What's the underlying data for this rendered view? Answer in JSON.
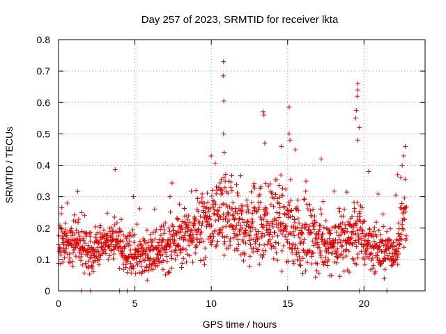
{
  "chart_data": {
    "type": "scatter",
    "title": "Day 257 of 2023, SRMTID for receiver lkta",
    "xlabel": "GPS time / hours",
    "ylabel": "SRMTID / TECUs",
    "xlim": [
      0,
      24
    ],
    "ylim": [
      0,
      0.8
    ],
    "x_ticks": [
      0,
      5,
      10,
      15,
      20
    ],
    "x_tick_labels": [
      "0",
      "5",
      "10",
      "15",
      "20"
    ],
    "y_ticks": [
      0,
      0.1,
      0.2,
      0.3,
      0.4,
      0.5,
      0.6,
      0.7,
      0.8
    ],
    "y_tick_labels": [
      "0",
      "0.1",
      "0.2",
      "0.3",
      "0.4",
      "0.5",
      "0.6",
      "0.7",
      "0.8"
    ],
    "grid": true,
    "marker": "plus",
    "colors": {
      "points": "#e00000",
      "grid": "#a0a0a0",
      "axis": "#000000"
    },
    "zero_value_times": [
      1.5,
      2.1,
      4.0,
      4.5,
      19.7,
      21.5
    ],
    "envelope": {
      "hours": [
        0,
        1,
        1.5,
        2,
        3,
        4,
        5,
        6,
        7,
        8,
        9,
        10,
        10.5,
        11,
        12,
        13,
        14,
        15,
        16,
        17,
        18,
        19,
        19.5,
        20,
        21,
        22,
        22.8
      ],
      "center": [
        0.17,
        0.15,
        0.16,
        0.11,
        0.16,
        0.15,
        0.11,
        0.12,
        0.14,
        0.17,
        0.19,
        0.22,
        0.24,
        0.22,
        0.2,
        0.21,
        0.22,
        0.2,
        0.17,
        0.15,
        0.15,
        0.17,
        0.2,
        0.16,
        0.13,
        0.12,
        0.26
      ],
      "spread": [
        0.06,
        0.05,
        0.06,
        0.05,
        0.05,
        0.05,
        0.05,
        0.05,
        0.06,
        0.07,
        0.07,
        0.08,
        0.09,
        0.09,
        0.08,
        0.1,
        0.1,
        0.09,
        0.08,
        0.07,
        0.06,
        0.08,
        0.1,
        0.07,
        0.05,
        0.05,
        0.07
      ]
    },
    "peaks": [
      {
        "x": 10.8,
        "y": 0.73
      },
      {
        "x": 10.78,
        "y": 0.685
      },
      {
        "x": 10.82,
        "y": 0.605
      },
      {
        "x": 10.8,
        "y": 0.5
      },
      {
        "x": 10.85,
        "y": 0.44
      },
      {
        "x": 10.0,
        "y": 0.43
      },
      {
        "x": 13.4,
        "y": 0.57
      },
      {
        "x": 13.45,
        "y": 0.56
      },
      {
        "x": 13.5,
        "y": 0.47
      },
      {
        "x": 15.1,
        "y": 0.585
      },
      {
        "x": 15.1,
        "y": 0.5
      },
      {
        "x": 15.15,
        "y": 0.48
      },
      {
        "x": 14.6,
        "y": 0.46
      },
      {
        "x": 15.5,
        "y": 0.45
      },
      {
        "x": 17.2,
        "y": 0.42
      },
      {
        "x": 19.6,
        "y": 0.66
      },
      {
        "x": 19.6,
        "y": 0.64
      },
      {
        "x": 19.55,
        "y": 0.62
      },
      {
        "x": 19.5,
        "y": 0.575
      },
      {
        "x": 19.45,
        "y": 0.55
      },
      {
        "x": 19.7,
        "y": 0.52
      },
      {
        "x": 19.6,
        "y": 0.48
      },
      {
        "x": 20.3,
        "y": 0.38
      },
      {
        "x": 22.7,
        "y": 0.46
      },
      {
        "x": 22.6,
        "y": 0.43
      },
      {
        "x": 22.5,
        "y": 0.4
      },
      {
        "x": 22.2,
        "y": 0.37
      },
      {
        "x": 7.3,
        "y": 0.3
      },
      {
        "x": 4.9,
        "y": 0.3
      },
      {
        "x": 9.0,
        "y": 0.32
      }
    ]
  }
}
